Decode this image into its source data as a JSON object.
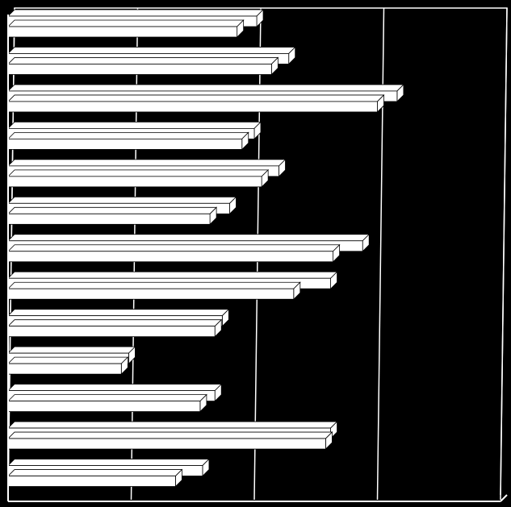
{
  "chart_data": {
    "type": "bar",
    "orientation": "horizontal",
    "style": "3d",
    "title": "",
    "xlabel": "",
    "ylabel": "",
    "xlim": [
      0,
      20
    ],
    "grid": true,
    "legend": "none",
    "categories": [
      "",
      "",
      "",
      "",
      "",
      "",
      "",
      "",
      "",
      "",
      "",
      "",
      ""
    ],
    "series": [
      {
        "values": [
          10.1,
          11.4,
          15.8,
          10.0,
          11.0,
          9.0,
          14.4,
          13.1,
          8.7,
          4.9,
          8.4,
          13.1,
          7.9
        ]
      },
      {
        "values": [
          9.3,
          10.7,
          15.0,
          9.5,
          10.3,
          8.2,
          13.2,
          11.6,
          8.4,
          4.6,
          7.8,
          12.9,
          6.8
        ]
      }
    ],
    "colors": {
      "background": "#000000",
      "bars": "#ffffff",
      "bar_outline": "#000000",
      "grid": "#ffffff",
      "axis": "#ffffff"
    }
  }
}
